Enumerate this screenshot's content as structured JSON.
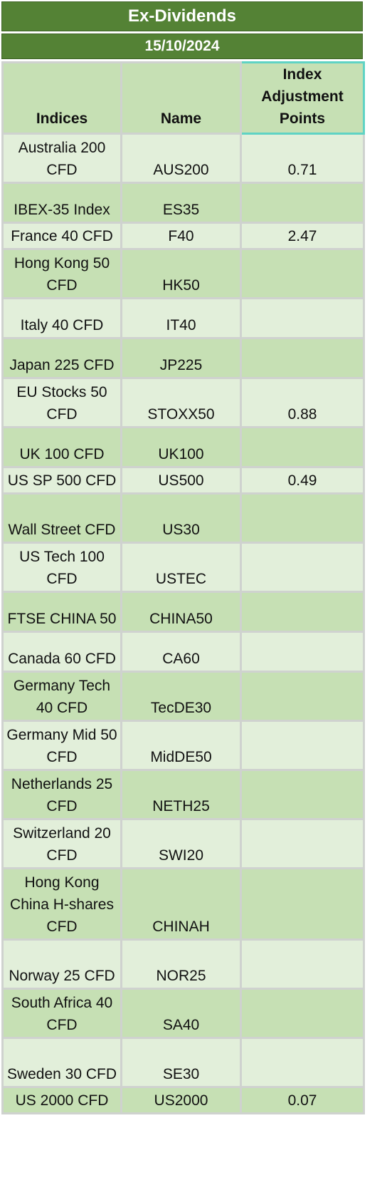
{
  "title": "Ex-Dividends",
  "date": "15/10/2024",
  "columns": [
    "Indices",
    "Name",
    "Index Adjustment Points"
  ],
  "rows": [
    {
      "index": "Australia 200 CFD",
      "name": "AUS200",
      "points": "0.71"
    },
    {
      "index": "IBEX-35 Index",
      "name": "ES35",
      "points": ""
    },
    {
      "index": "France 40 CFD",
      "name": "F40",
      "points": "2.47"
    },
    {
      "index": "Hong Kong 50 CFD",
      "name": "HK50",
      "points": ""
    },
    {
      "index": "Italy 40 CFD",
      "name": "IT40",
      "points": ""
    },
    {
      "index": "Japan 225 CFD",
      "name": "JP225",
      "points": ""
    },
    {
      "index": "EU Stocks 50 CFD",
      "name": "STOXX50",
      "points": "0.88"
    },
    {
      "index": "UK 100 CFD",
      "name": "UK100",
      "points": ""
    },
    {
      "index": "US SP 500 CFD",
      "name": "US500",
      "points": "0.49"
    },
    {
      "index": "Wall Street CFD",
      "name": "US30",
      "points": ""
    },
    {
      "index": "US Tech 100 CFD",
      "name": "USTEC",
      "points": ""
    },
    {
      "index": "FTSE CHINA 50",
      "name": "CHINA50",
      "points": ""
    },
    {
      "index": "Canada 60 CFD",
      "name": "CA60",
      "points": ""
    },
    {
      "index": "Germany Tech 40 CFD",
      "name": "TecDE30",
      "points": ""
    },
    {
      "index": "Germany Mid 50 CFD",
      "name": "MidDE50",
      "points": ""
    },
    {
      "index": "Netherlands 25 CFD",
      "name": "NETH25",
      "points": ""
    },
    {
      "index": "Switzerland 20 CFD",
      "name": "SWI20",
      "points": ""
    },
    {
      "index": "Hong Kong China H-shares CFD",
      "name": "CHINAH",
      "points": ""
    },
    {
      "index": "Norway 25 CFD",
      "name": "NOR25",
      "points": ""
    },
    {
      "index": "South Africa 40 CFD",
      "name": "SA40",
      "points": ""
    },
    {
      "index": "Sweden 30 CFD",
      "name": "SE30",
      "points": ""
    },
    {
      "index": "US 2000 CFD",
      "name": "US2000",
      "points": "0.07"
    }
  ],
  "colors": {
    "header_green": "#548235",
    "row_light": "#e2efda",
    "row_mid": "#c6e0b4",
    "grid": "#cfd2cf",
    "selected_border": "#5fd3c4"
  }
}
